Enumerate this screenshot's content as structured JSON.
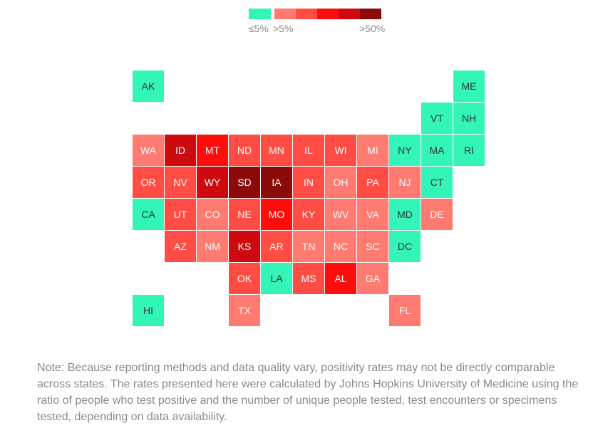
{
  "legend": {
    "colors": [
      "#33f5b8",
      "#ff7a70",
      "#ff4d45",
      "#ff0d0d",
      "#cc0a10",
      "#8b0b0b"
    ],
    "label_low": "≤5%",
    "label_mid": ">5%",
    "label_high": ">50%"
  },
  "colors": {
    "c0": "#33f5b8",
    "c1": "#ff7a70",
    "c2": "#ff4d45",
    "c3": "#ff0d0d",
    "c4": "#cc0a10",
    "c5": "#8b0b0b"
  },
  "states": [
    {
      "abbr": "AK",
      "row": 0,
      "col": 0,
      "level": 0
    },
    {
      "abbr": "ME",
      "row": 0,
      "col": 10,
      "level": 0
    },
    {
      "abbr": "VT",
      "row": 1,
      "col": 9,
      "level": 0
    },
    {
      "abbr": "NH",
      "row": 1,
      "col": 10,
      "level": 0
    },
    {
      "abbr": "WA",
      "row": 2,
      "col": 0,
      "level": 1
    },
    {
      "abbr": "ID",
      "row": 2,
      "col": 1,
      "level": 4
    },
    {
      "abbr": "MT",
      "row": 2,
      "col": 2,
      "level": 3
    },
    {
      "abbr": "ND",
      "row": 2,
      "col": 3,
      "level": 2
    },
    {
      "abbr": "MN",
      "row": 2,
      "col": 4,
      "level": 2
    },
    {
      "abbr": "IL",
      "row": 2,
      "col": 5,
      "level": 2
    },
    {
      "abbr": "WI",
      "row": 2,
      "col": 6,
      "level": 2
    },
    {
      "abbr": "MI",
      "row": 2,
      "col": 7,
      "level": 1
    },
    {
      "abbr": "NY",
      "row": 2,
      "col": 8,
      "level": 0
    },
    {
      "abbr": "MA",
      "row": 2,
      "col": 9,
      "level": 0
    },
    {
      "abbr": "RI",
      "row": 2,
      "col": 10,
      "level": 0
    },
    {
      "abbr": "OR",
      "row": 3,
      "col": 0,
      "level": 2
    },
    {
      "abbr": "NV",
      "row": 3,
      "col": 1,
      "level": 2
    },
    {
      "abbr": "WY",
      "row": 3,
      "col": 2,
      "level": 4
    },
    {
      "abbr": "SD",
      "row": 3,
      "col": 3,
      "level": 5
    },
    {
      "abbr": "IA",
      "row": 3,
      "col": 4,
      "level": 5
    },
    {
      "abbr": "IN",
      "row": 3,
      "col": 5,
      "level": 2
    },
    {
      "abbr": "OH",
      "row": 3,
      "col": 6,
      "level": 1
    },
    {
      "abbr": "PA",
      "row": 3,
      "col": 7,
      "level": 2
    },
    {
      "abbr": "NJ",
      "row": 3,
      "col": 8,
      "level": 1
    },
    {
      "abbr": "CT",
      "row": 3,
      "col": 9,
      "level": 0
    },
    {
      "abbr": "CA",
      "row": 4,
      "col": 0,
      "level": 0
    },
    {
      "abbr": "UT",
      "row": 4,
      "col": 1,
      "level": 2
    },
    {
      "abbr": "CO",
      "row": 4,
      "col": 2,
      "level": 1
    },
    {
      "abbr": "NE",
      "row": 4,
      "col": 3,
      "level": 2
    },
    {
      "abbr": "MO",
      "row": 4,
      "col": 4,
      "level": 3
    },
    {
      "abbr": "KY",
      "row": 4,
      "col": 5,
      "level": 2
    },
    {
      "abbr": "WV",
      "row": 4,
      "col": 6,
      "level": 1
    },
    {
      "abbr": "VA",
      "row": 4,
      "col": 7,
      "level": 1
    },
    {
      "abbr": "MD",
      "row": 4,
      "col": 8,
      "level": 0
    },
    {
      "abbr": "DE",
      "row": 4,
      "col": 9,
      "level": 1
    },
    {
      "abbr": "AZ",
      "row": 5,
      "col": 1,
      "level": 2
    },
    {
      "abbr": "NM",
      "row": 5,
      "col": 2,
      "level": 1
    },
    {
      "abbr": "KS",
      "row": 5,
      "col": 3,
      "level": 4
    },
    {
      "abbr": "AR",
      "row": 5,
      "col": 4,
      "level": 2
    },
    {
      "abbr": "TN",
      "row": 5,
      "col": 5,
      "level": 1
    },
    {
      "abbr": "NC",
      "row": 5,
      "col": 6,
      "level": 1
    },
    {
      "abbr": "SC",
      "row": 5,
      "col": 7,
      "level": 1
    },
    {
      "abbr": "DC",
      "row": 5,
      "col": 8,
      "level": 0
    },
    {
      "abbr": "OK",
      "row": 6,
      "col": 3,
      "level": 2
    },
    {
      "abbr": "LA",
      "row": 6,
      "col": 4,
      "level": 0
    },
    {
      "abbr": "MS",
      "row": 6,
      "col": 5,
      "level": 2
    },
    {
      "abbr": "AL",
      "row": 6,
      "col": 6,
      "level": 3
    },
    {
      "abbr": "GA",
      "row": 6,
      "col": 7,
      "level": 1
    },
    {
      "abbr": "HI",
      "row": 7,
      "col": 0,
      "level": 0
    },
    {
      "abbr": "TX",
      "row": 7,
      "col": 3,
      "level": 1
    },
    {
      "abbr": "FL",
      "row": 7,
      "col": 8,
      "level": 1
    }
  ],
  "note": "Note: Because reporting methods and data quality vary, positivity rates may not be directly comparable across states. The rates presented here were calculated by Johns Hopkins University of Medicine using the ratio of people who test positive and the number of unique people tested, test encounters or specimens tested, depending on data availability."
}
